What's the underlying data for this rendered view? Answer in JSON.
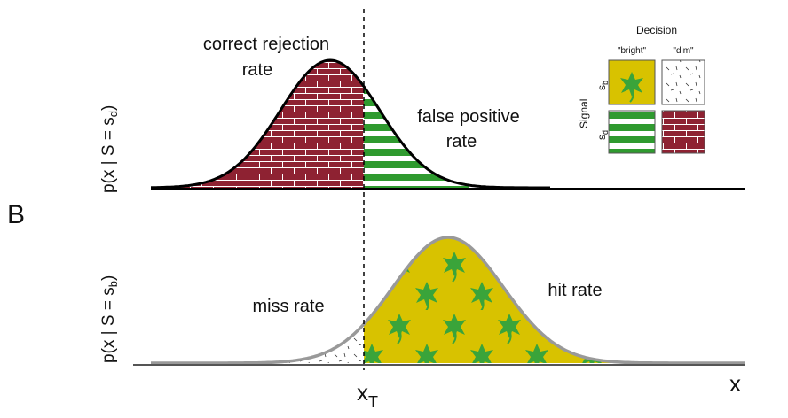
{
  "panel_label": "B",
  "top": {
    "y_label": {
      "text": "p(x | S = s",
      "sub": "d",
      "close": ")"
    },
    "left_label": [
      "correct rejection",
      "rate"
    ],
    "right_label": [
      "false positive",
      "rate"
    ]
  },
  "bottom": {
    "y_label": {
      "text": "p(x | S = s",
      "sub": "b",
      "close": ")"
    },
    "left_label": "miss rate",
    "right_label": "hit rate"
  },
  "x_axis": {
    "threshold": {
      "text": "x",
      "sub": "T"
    },
    "label": "x"
  },
  "legend": {
    "title": "Decision",
    "columns": [
      "\"bright\"",
      "\"dim\""
    ],
    "row_title": "Signal",
    "rows": [
      {
        "text": "s",
        "sub": "b"
      },
      {
        "text": "s",
        "sub": "d"
      }
    ]
  }
}
